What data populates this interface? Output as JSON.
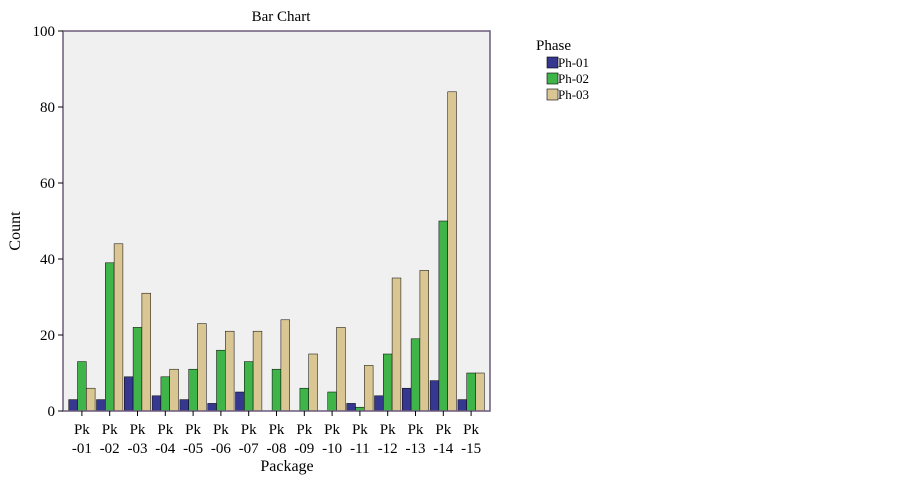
{
  "chart_data": {
    "type": "bar",
    "title": "Bar Chart",
    "xlabel": "Package",
    "ylabel": "Count",
    "ylim": [
      0,
      100
    ],
    "yticks": [
      0,
      20,
      40,
      60,
      80,
      100
    ],
    "grid": false,
    "legend_position": "top-right, outside plot",
    "legend_title": "Phase",
    "categories": [
      [
        "Pk",
        "-01"
      ],
      [
        "Pk",
        "-02"
      ],
      [
        "Pk",
        "-03"
      ],
      [
        "Pk",
        "-04"
      ],
      [
        "Pk",
        "-05"
      ],
      [
        "Pk",
        "-06"
      ],
      [
        "Pk",
        "-07"
      ],
      [
        "Pk",
        "-08"
      ],
      [
        "Pk",
        "-09"
      ],
      [
        "Pk",
        "-10"
      ],
      [
        "Pk",
        "-11"
      ],
      [
        "Pk",
        "-12"
      ],
      [
        "Pk",
        "-13"
      ],
      [
        "Pk",
        "-14"
      ],
      [
        "Pk",
        "-15"
      ]
    ],
    "series": [
      {
        "name": "Ph-01",
        "color": "#35388e",
        "values": [
          3,
          3,
          9,
          4,
          3,
          2,
          5,
          0,
          0,
          0,
          2,
          4,
          6,
          8,
          3
        ]
      },
      {
        "name": "Ph-02",
        "color": "#3fb449",
        "values": [
          13,
          39,
          22,
          9,
          11,
          16,
          13,
          11,
          6,
          5,
          1,
          15,
          19,
          50,
          10
        ]
      },
      {
        "name": "Ph-03",
        "color": "#d9c693",
        "values": [
          6,
          44,
          31,
          11,
          23,
          21,
          21,
          24,
          15,
          22,
          12,
          35,
          37,
          84,
          10
        ]
      }
    ],
    "colors": {
      "plot_background": "#f0f0f0",
      "frame": "#6b5a7a"
    }
  }
}
